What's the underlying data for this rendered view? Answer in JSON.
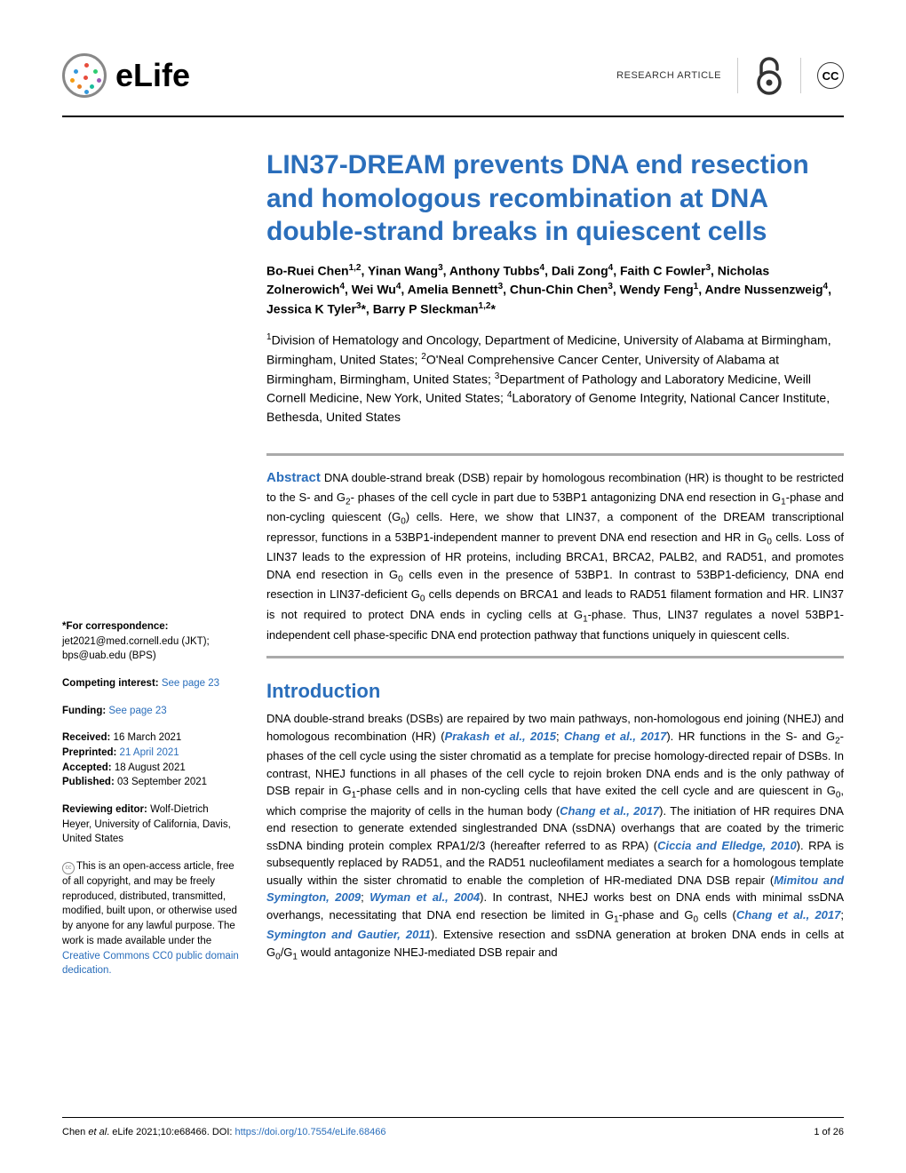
{
  "header": {
    "journal_name": "eLife",
    "article_type": "RESEARCH ARTICLE",
    "cc_label": "CC",
    "logo_colors": [
      "#e74c3c",
      "#3498db",
      "#2ecc71",
      "#f39c12",
      "#9b59b6",
      "#e67e22",
      "#1abc9c"
    ]
  },
  "title": "LIN37-DREAM prevents DNA end resection and homologous recombination at DNA double-strand breaks in quiescent cells",
  "authors_html": "Bo-Ruei Chen<sup>1,2</sup>, Yinan Wang<sup>3</sup>, Anthony Tubbs<sup>4</sup>, Dali Zong<sup>4</sup>, Faith C Fowler<sup>3</sup>, Nicholas Zolnerowich<sup>4</sup>, Wei Wu<sup>4</sup>, Amelia Bennett<sup>3</sup>, Chun-Chin Chen<sup>3</sup>, Wendy Feng<sup>1</sup>, Andre Nussenzweig<sup>4</sup>, Jessica K Tyler<sup>3</sup>*, Barry P Sleckman<sup>1,2</sup>*",
  "affiliations_html": "<sup>1</sup>Division of Hematology and Oncology, Department of Medicine, University of Alabama at Birmingham, Birmingham, United States; <sup>2</sup>O'Neal Comprehensive Cancer Center, University of Alabama at Birmingham, Birmingham, United States; <sup>3</sup>Department of Pathology and Laboratory Medicine, Weill Cornell Medicine, New York, United States; <sup>4</sup>Laboratory of Genome Integrity, National Cancer Institute, Bethesda, United States",
  "abstract": {
    "label": "Abstract",
    "text_html": "DNA double-strand break (DSB) repair by homologous recombination (HR) is thought to be restricted to the S- and G<sub>2</sub>- phases of the cell cycle in part due to 53BP1 antagonizing DNA end resection in G<sub>1</sub>-phase and non-cycling quiescent (G<sub>0</sub>) cells. Here, we show that LIN37, a component of the DREAM transcriptional repressor, functions in a 53BP1-independent manner to prevent DNA end resection and HR in G<sub>0</sub> cells. Loss of LIN37 leads to the expression of HR proteins, including BRCA1, BRCA2, PALB2, and RAD51, and promotes DNA end resection in G<sub>0</sub> cells even in the presence of 53BP1. In contrast to 53BP1-deficiency, DNA end resection in LIN37-deficient G<sub>0</sub> cells depends on BRCA1 and leads to RAD51 filament formation and HR. LIN37 is not required to protect DNA ends in cycling cells at G<sub>1</sub>-phase. Thus, LIN37 regulates a novel 53BP1-independent cell phase-specific DNA end protection pathway that functions uniquely in quiescent cells."
  },
  "sidebar": {
    "correspondence": {
      "label": "*For correspondence:",
      "emails": "jet2021@med.cornell.edu (JKT); bps@uab.edu (BPS)"
    },
    "competing": {
      "label": "Competing interest:",
      "link": "See page 23"
    },
    "funding": {
      "label": "Funding:",
      "link": "See page 23"
    },
    "dates": {
      "received_label": "Received:",
      "received": "16 March 2021",
      "preprinted_label": "Preprinted:",
      "preprinted": "21 April 2021",
      "accepted_label": "Accepted:",
      "accepted": "18 August 2021",
      "published_label": "Published:",
      "published": "03 September 2021"
    },
    "reviewing": {
      "label": "Reviewing editor:",
      "text": "Wolf-Dietrich Heyer, University of California, Davis, United States"
    },
    "license": {
      "text": "This is an open-access article, free of all copyright, and may be freely reproduced, distributed, transmitted, modified, built upon, or otherwise used by anyone for any lawful purpose. The work is made available under the ",
      "link": "Creative Commons CC0 public domain dedication."
    }
  },
  "intro": {
    "heading": "Introduction",
    "text_html": "DNA double-strand breaks (DSBs) are repaired by two main pathways, non-homologous end joining (NHEJ) and homologous recombination (HR) (<span class='ref'>Prakash et al., 2015</span>; <span class='ref'>Chang et al., 2017</span>). HR functions in the S- and G<sub>2</sub>-phases of the cell cycle using the sister chromatid as a template for precise homology-directed repair of DSBs. In contrast, NHEJ functions in all phases of the cell cycle to rejoin broken DNA ends and is the only pathway of DSB repair in G<sub>1</sub>-phase cells and in non-cycling cells that have exited the cell cycle and are quiescent in G<sub>0</sub>, which comprise the majority of cells in the human body (<span class='ref'>Chang et al., 2017</span>). The initiation of HR requires DNA end resection to generate extended singlestranded DNA (ssDNA) overhangs that are coated by the trimeric ssDNA binding protein complex RPA1/2/3 (hereafter referred to as RPA) (<span class='ref'>Ciccia and Elledge, 2010</span>). RPA is subsequently replaced by RAD51, and the RAD51 nucleofilament mediates a search for a homologous template usually within the sister chromatid to enable the completion of HR-mediated DNA DSB repair (<span class='ref'>Mimitou and Symington, 2009</span>; <span class='ref'>Wyman et al., 2004</span>). In contrast, NHEJ works best on DNA ends with minimal ssDNA overhangs, necessitating that DNA end resection be limited in G<sub>1</sub>-phase and G<sub>0</sub> cells (<span class='ref'>Chang et al., 2017</span>; <span class='ref'>Symington and Gautier, 2011</span>). Extensive resection and ssDNA generation at broken DNA ends in cells at G<sub>0</sub>/G<sub>1</sub> would antagonize NHEJ-mediated DSB repair and"
  },
  "footer": {
    "citation_prefix": "Chen ",
    "citation_italic": "et al",
    "citation_rest": ". eLife 2021;10:e68466. DOI: ",
    "doi": "https://doi.org/10.7554/eLife.68466",
    "page": "1 of 26"
  },
  "colors": {
    "brand_blue": "#2a6ebb",
    "rule_gray": "#aaa"
  }
}
